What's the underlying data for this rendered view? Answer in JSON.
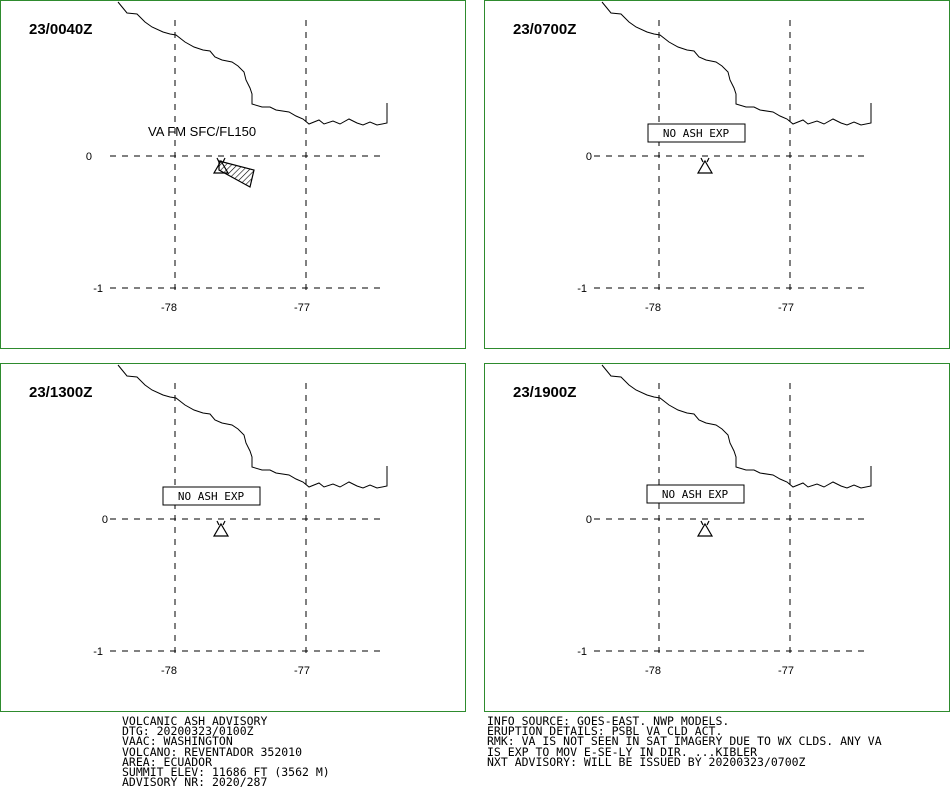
{
  "panels": [
    {
      "title": "23/0040Z",
      "label": "VA FM SFC/FL150",
      "boxed": false,
      "ash": true
    },
    {
      "title": "23/0700Z",
      "label": "NO ASH EXP",
      "boxed": true,
      "ash": false
    },
    {
      "title": "23/1300Z",
      "label": "NO ASH EXP",
      "boxed": true,
      "ash": false
    },
    {
      "title": "23/1900Z",
      "label": "NO ASH EXP",
      "boxed": true,
      "ash": false
    }
  ],
  "axes": {
    "lat_ticks": [
      "0",
      "-1"
    ],
    "lon_ticks": [
      "-78",
      "-77"
    ]
  },
  "advisory_left": [
    "VOLCANIC ASH ADVISORY",
    "DTG: 20200323/0100Z",
    "VAAC: WASHINGTON",
    "VOLCANO: REVENTADOR 352010",
    "AREA: ECUADOR",
    "SUMMIT ELEV: 11686 FT (3562 M)",
    "ADVISORY NR: 2020/287"
  ],
  "advisory_right": [
    "INFO SOURCE: GOES-EAST. NWP MODELS.",
    "ERUPTION DETAILS: PSBL VA CLD ACT.",
    "RMK: VA IS NOT SEEN IN SAT IMAGERY DUE TO WX CLDS. ANY VA",
    "IS EXP TO MOV E-SE-LY IN DIR. ...KIBLER",
    "NXT ADVISORY: WILL BE ISSUED BY 20200323/0700Z"
  ]
}
